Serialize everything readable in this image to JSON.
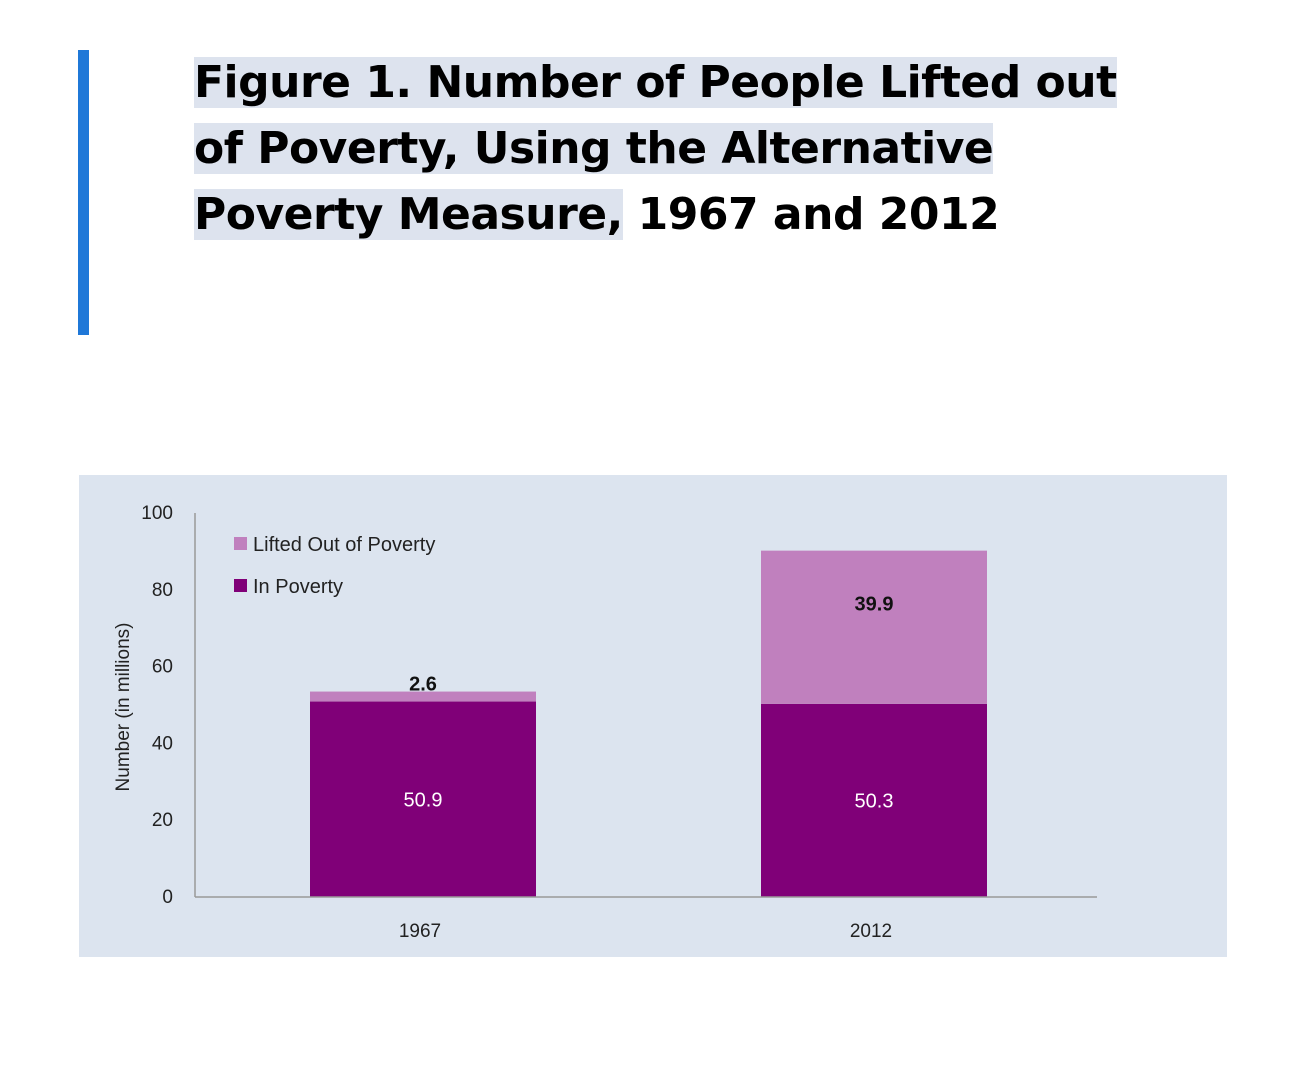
{
  "figure": {
    "title_highlighted": "Figure 1. Number of People Lifted out of Poverty, Using the Alternative Poverty Measure,",
    "title_rest": " 1967 and 2012"
  },
  "colors": {
    "accent": "#1f78d8",
    "panel_bg": "#dce4ef",
    "in_poverty": "#800078",
    "lifted": "#c080be",
    "axis": "#999999"
  },
  "chart_data": {
    "type": "bar",
    "stacked": true,
    "categories": [
      "1967",
      "2012"
    ],
    "series": [
      {
        "name": "In Poverty",
        "values": [
          50.9,
          50.3
        ],
        "color": "#800078"
      },
      {
        "name": "Lifted Out of Poverty",
        "values": [
          2.6,
          39.9
        ],
        "color": "#c080be"
      }
    ],
    "legend_entries": [
      "Lifted Out of Poverty",
      "In Poverty"
    ],
    "legend_position": "top-left",
    "ylabel": "Number (in millions)",
    "xlabel": "",
    "ylim": [
      0,
      100
    ],
    "yticks": [
      0,
      20,
      40,
      60,
      80,
      100
    ],
    "grid": false
  }
}
